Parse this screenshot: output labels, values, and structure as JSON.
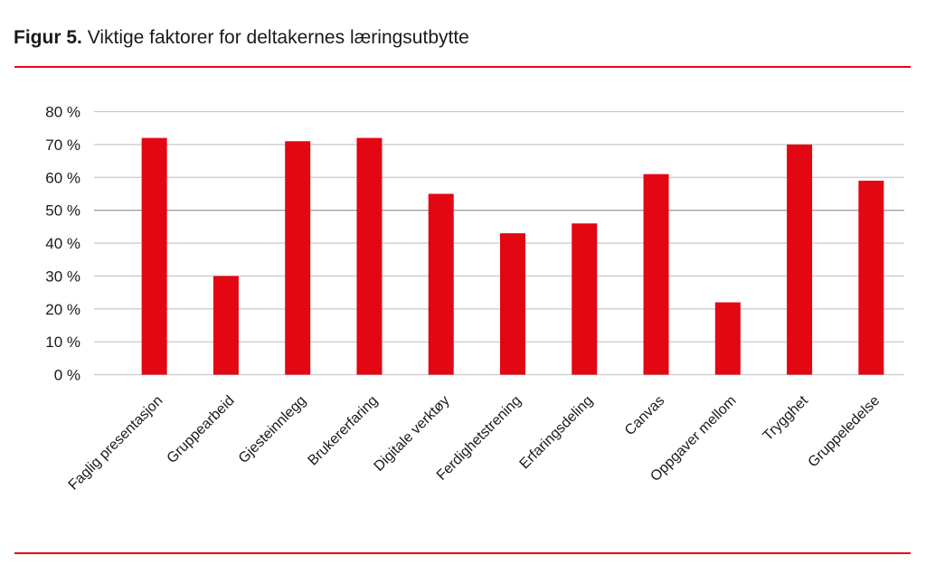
{
  "header": {
    "figure_label": "Figur 5.",
    "title_text": "Viktige faktorer for deltakernes læringsutbytte"
  },
  "colors": {
    "bar": "#e30613",
    "rule": "#e30613",
    "grid": "#c8c8c8",
    "text": "#1a1a1a"
  },
  "chart_data": {
    "type": "bar",
    "title": "Figur 5. Viktige faktorer for deltakernes læringsutbytte",
    "xlabel": "",
    "ylabel": "",
    "categories": [
      "Faglig presentasjon",
      "Gruppearbeid",
      "Gjesteinnlegg",
      "Brukererfaring",
      "Digitale verktøy",
      "Ferdighetstrening",
      "Erfaringsdeling",
      "Canvas",
      "Oppgaver mellom",
      "Trygghet",
      "Gruppeledelse"
    ],
    "values": [
      72,
      30,
      71,
      72,
      55,
      43,
      46,
      61,
      22,
      70,
      59
    ],
    "unit": "%",
    "ylim": [
      0,
      80
    ],
    "yticks": [
      0,
      10,
      20,
      30,
      40,
      50,
      60,
      70,
      80
    ],
    "ytick_labels": [
      "0 %",
      "10 %",
      "20 %",
      "30 %",
      "40 %",
      "50 %",
      "60 %",
      "70 %",
      "80 %"
    ],
    "grid": true,
    "legend": null,
    "xtick_rotation": -45
  }
}
